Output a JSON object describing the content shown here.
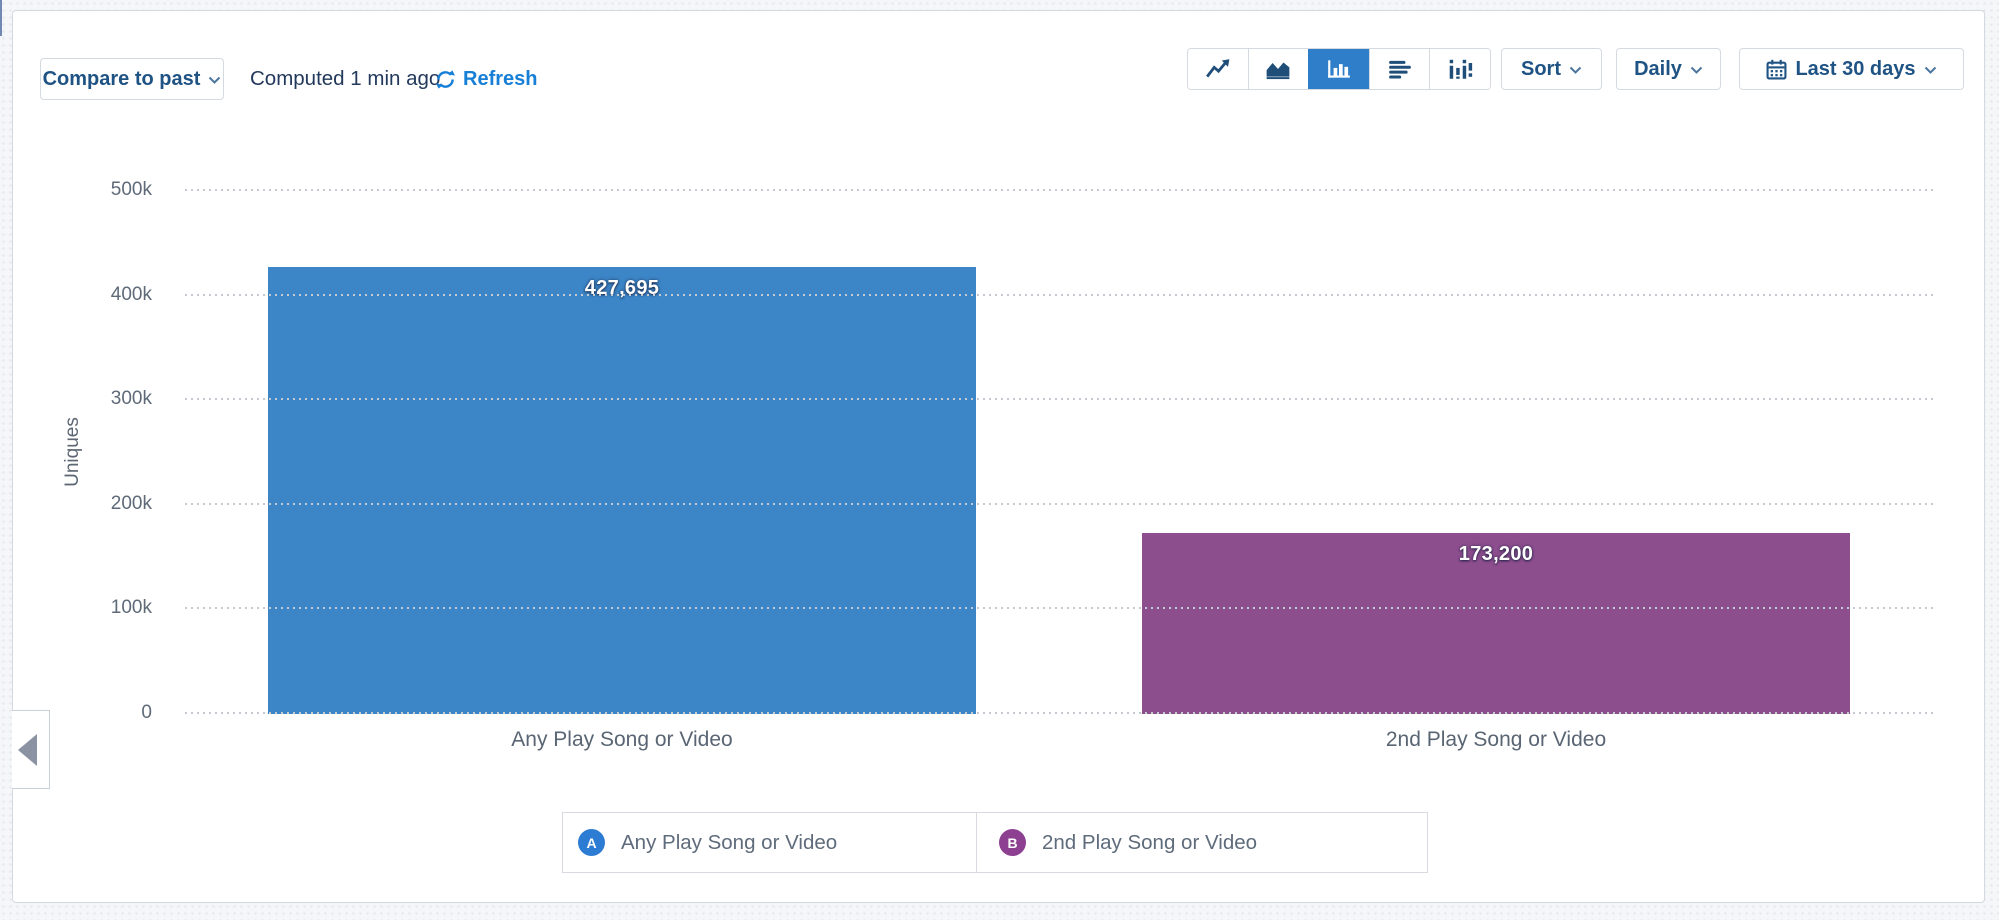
{
  "header": {
    "compare_button": "Compare to past",
    "computed_status": "Computed 1 min ago",
    "refresh_label": "Refresh",
    "sort_button": "Sort",
    "interval_button": "Daily",
    "date_range_button": "Last 30 days",
    "chart_type_buttons": [
      "line",
      "area",
      "bar",
      "horizontal-bar",
      "distribution"
    ],
    "selected_chart_type": "bar"
  },
  "chart_data": {
    "type": "bar",
    "ylabel": "Uniques",
    "categories": [
      "Any Play Song or Video",
      "2nd Play Song or Video"
    ],
    "values": [
      427695,
      173200
    ],
    "value_labels": [
      "427,695",
      "173,200"
    ],
    "bar_colors": [
      "#3c85c6",
      "#8d4e8e"
    ],
    "ylim": [
      0,
      500000
    ],
    "ytick_values": [
      0,
      100000,
      200000,
      300000,
      400000,
      500000
    ],
    "ytick_labels": [
      "0",
      "100k",
      "200k",
      "300k",
      "400k",
      "500k"
    ],
    "grid": "dotted-horizontal",
    "legend_position": "bottom"
  },
  "legend": {
    "items": [
      {
        "marker": "A",
        "label": "Any Play Song or Video",
        "color": "#2d7cd3"
      },
      {
        "marker": "B",
        "label": "2nd Play Song or Video",
        "color": "#8d3f92"
      }
    ]
  },
  "colors": {
    "selected_segment": "#2e7ec9",
    "link_blue": "#177fd6"
  }
}
